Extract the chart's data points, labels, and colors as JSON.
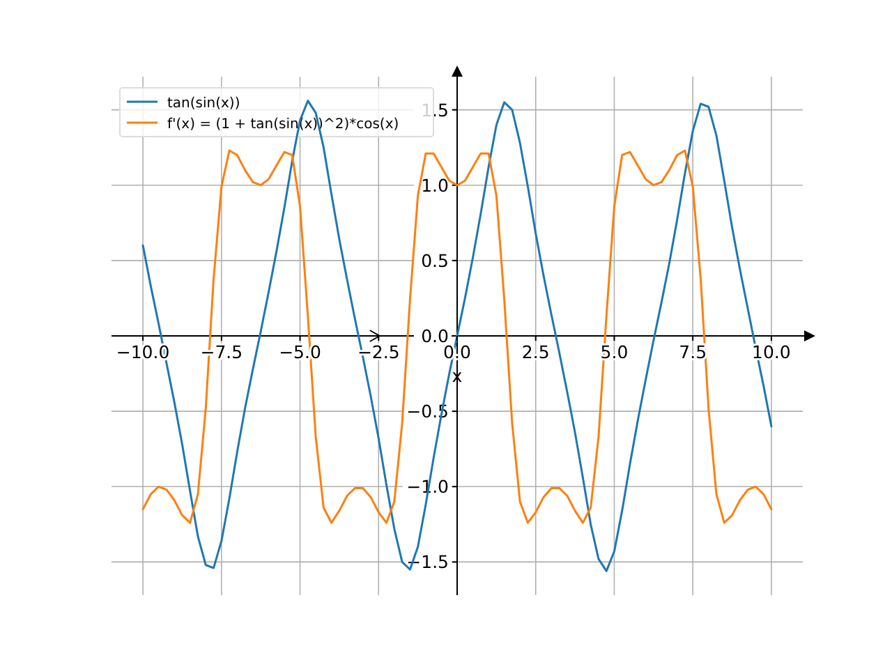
{
  "chart_data": {
    "type": "line",
    "x": [
      -10,
      -9.75,
      -9.5,
      -9.25,
      -9,
      -8.75,
      -8.5,
      -8.25,
      -8,
      -7.75,
      -7.5,
      -7.25,
      -7,
      -6.75,
      -6.5,
      -6.25,
      -6,
      -5.75,
      -5.5,
      -5.25,
      -5,
      -4.75,
      -4.5,
      -4.25,
      -4,
      -3.75,
      -3.5,
      -3.25,
      -3,
      -2.75,
      -2.5,
      -2.25,
      -2,
      -1.75,
      -1.5,
      -1.25,
      -1,
      -0.75,
      -0.5,
      -0.25,
      0,
      0.25,
      0.5,
      0.75,
      1,
      1.25,
      1.5,
      1.75,
      2,
      2.25,
      2.5,
      2.75,
      3,
      3.25,
      3.5,
      3.75,
      4,
      4.25,
      4.5,
      4.75,
      5,
      5.25,
      5.5,
      5.75,
      6,
      6.25,
      6.5,
      6.75,
      7,
      7.25,
      7.5,
      7.75,
      8,
      8.25,
      8.5,
      8.75,
      9,
      9.25,
      9.5,
      9.75,
      10
    ],
    "series": [
      {
        "name": "tan(sin(x))",
        "color": "#1f77b4",
        "values": [
          0.6,
          0.33,
          0.08,
          -0.18,
          -0.44,
          -0.72,
          -1.03,
          -1.33,
          -1.52,
          -1.54,
          -1.36,
          -1.08,
          -0.77,
          -0.48,
          -0.22,
          0.03,
          0.29,
          0.56,
          0.85,
          1.16,
          1.43,
          1.56,
          1.48,
          1.25,
          0.94,
          0.64,
          0.37,
          0.11,
          -0.14,
          -0.4,
          -0.68,
          -0.99,
          -1.28,
          -1.5,
          -1.55,
          -1.4,
          -1.12,
          -0.81,
          -0.52,
          -0.25,
          0,
          0.25,
          0.52,
          0.81,
          1.12,
          1.4,
          1.55,
          1.5,
          1.28,
          0.99,
          0.68,
          0.4,
          0.14,
          -0.11,
          -0.37,
          -0.64,
          -0.94,
          -1.25,
          -1.48,
          -1.56,
          -1.43,
          -1.16,
          -0.85,
          -0.56,
          -0.29,
          -0.03,
          0.22,
          0.48,
          0.77,
          1.08,
          1.36,
          1.54,
          1.52,
          1.33,
          1.03,
          0.72,
          0.44,
          0.18,
          -0.08,
          -0.33,
          -0.6
        ]
      },
      {
        "name": "f'(x) = (1 + tan(sin(x))^2)*cos(x)",
        "color": "#ff7f0e",
        "values": [
          -1.15,
          -1.05,
          -1.0,
          -1.02,
          -1.09,
          -1.19,
          -1.24,
          -1.05,
          -0.48,
          0.38,
          0.99,
          1.23,
          1.2,
          1.1,
          1.02,
          1.0,
          1.04,
          1.13,
          1.22,
          1.2,
          0.86,
          0.13,
          -0.67,
          -1.14,
          -1.24,
          -1.16,
          -1.06,
          -1.01,
          -1.01,
          -1.07,
          -1.17,
          -1.24,
          -1.1,
          -0.58,
          0.24,
          0.93,
          1.21,
          1.21,
          1.12,
          1.03,
          1.0,
          1.03,
          1.12,
          1.21,
          1.21,
          0.93,
          0.24,
          -0.58,
          -1.1,
          -1.24,
          -1.17,
          -1.07,
          -1.01,
          -1.01,
          -1.06,
          -1.16,
          -1.24,
          -1.14,
          -0.67,
          0.13,
          0.86,
          1.2,
          1.22,
          1.13,
          1.04,
          1.0,
          1.02,
          1.1,
          1.2,
          1.23,
          0.99,
          0.38,
          -0.48,
          -1.05,
          -1.24,
          -1.19,
          -1.09,
          -1.02,
          -1.0,
          -1.05,
          -1.15
        ]
      }
    ],
    "xlabel": "x",
    "xlim": [
      -11,
      11
    ],
    "ylim": [
      -1.72,
      1.72
    ],
    "xticks": [
      {
        "value": -10,
        "label": "−10.0"
      },
      {
        "value": -7.5,
        "label": "−7.5"
      },
      {
        "value": -5,
        "label": "−5.0"
      },
      {
        "value": -2.5,
        "label": "−2.5"
      },
      {
        "value": 0,
        "label": "0.0"
      },
      {
        "value": 2.5,
        "label": "2.5"
      },
      {
        "value": 5,
        "label": "5.0"
      },
      {
        "value": 7.5,
        "label": "7.5"
      },
      {
        "value": 10,
        "label": "10.0"
      }
    ],
    "yticks": [
      {
        "value": -1.5,
        "label": "−1.5"
      },
      {
        "value": -1,
        "label": "−1.0"
      },
      {
        "value": -0.5,
        "label": "−0.5"
      },
      {
        "value": 0,
        "label": "0.0"
      },
      {
        "value": 0.5,
        "label": "0.5"
      },
      {
        "value": 1,
        "label": "1.0"
      },
      {
        "value": 1.5,
        "label": "1.5"
      }
    ],
    "grid": true,
    "legend": "top left",
    "line_style": "solid"
  }
}
